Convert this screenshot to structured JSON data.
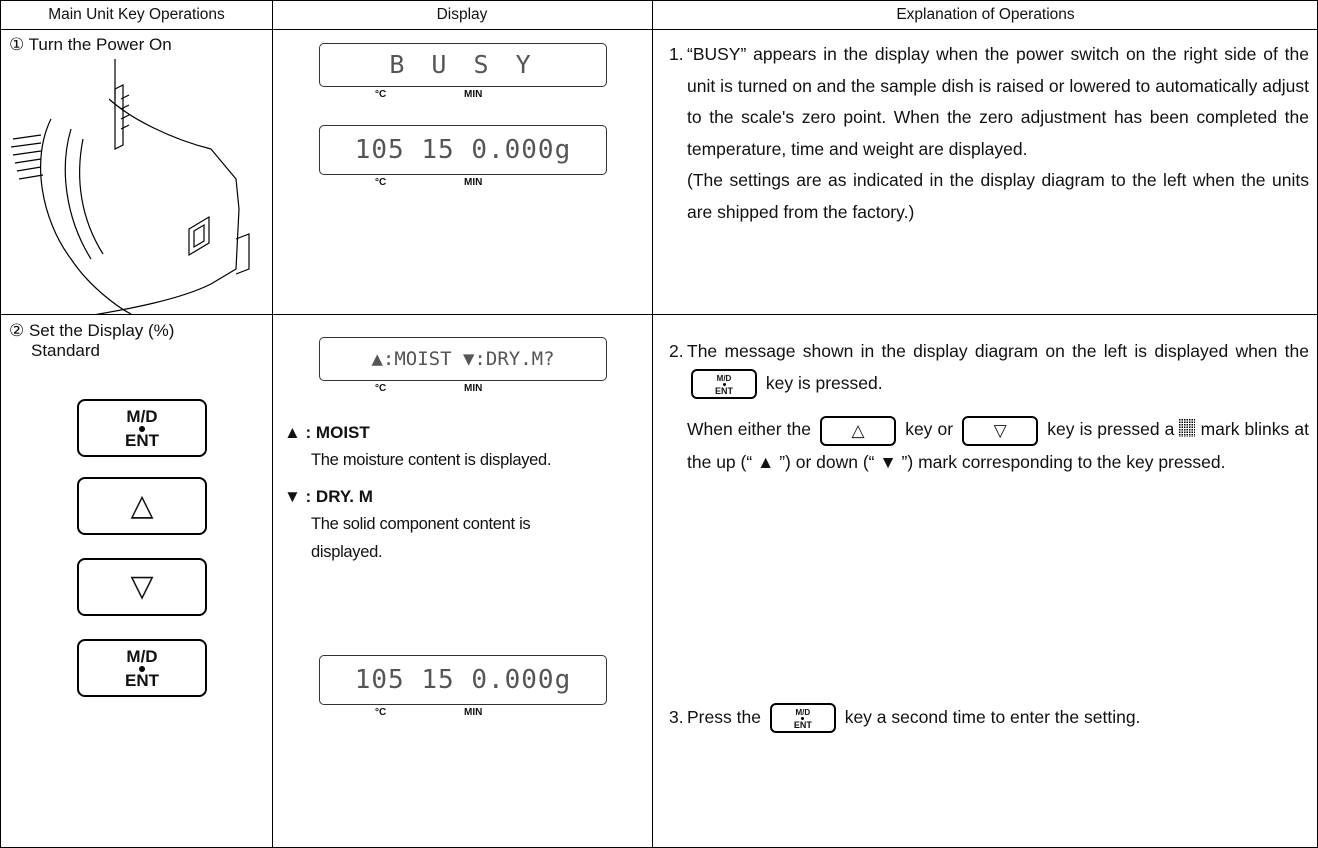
{
  "header": [
    "Main Unit Key Operations",
    "Display",
    "Explanation of Operations"
  ],
  "keys": {
    "md": {
      "top": "M/D",
      "bottom": "ENT"
    },
    "up": "△",
    "down": "▽"
  },
  "rows": [
    {
      "step": "① Turn the Power On",
      "displays": [
        {
          "text": "B U S Y",
          "temp_unit": "°C",
          "time_unit": "MIN"
        },
        {
          "text": "105 15 0.000g",
          "temp_unit": "°C",
          "time_unit": "MIN"
        }
      ],
      "explanation": [
        {
          "number": "1.",
          "text": "“BUSY” appears in the display when the power switch on the right side of the unit is turned on and the sample dish is raised or lowered to automatically adjust to the scale's zero point. When the zero adjustment has been completed the temperature, time and weight are displayed.",
          "note": "(The settings are as indicated in the display diagram to the left when the units are shipped from the factory.)"
        }
      ]
    },
    {
      "step": [
        "② Set the Display (%)",
        "Standard"
      ],
      "displays": [
        {
          "text": "▲:MOIST ▼:DRY.M?",
          "temp_unit": "°C",
          "time_unit": "MIN"
        },
        {
          "text": "105 15 0.000g",
          "temp_unit": "°C",
          "time_unit": "MIN"
        }
      ],
      "legend": [
        {
          "label": "▲ : MOIST",
          "text": "The moisture content is displayed."
        },
        {
          "label": "▼ : DRY. M",
          "text": "The solid component content is displayed."
        }
      ],
      "explanation": [
        {
          "number": "2.",
          "parts": [
            "The message shown in the display diagram on the left is displayed when the",
            "key is pressed.",
            "When either the",
            "key or",
            "key is pressed a",
            "mark blinks at the up (“ ▲ ”) or down (“ ▼ ”) mark corresponding to the key pressed."
          ]
        },
        {
          "number": "3.",
          "parts": [
            "Press the",
            "key a second time to enter the setting."
          ]
        }
      ]
    }
  ]
}
